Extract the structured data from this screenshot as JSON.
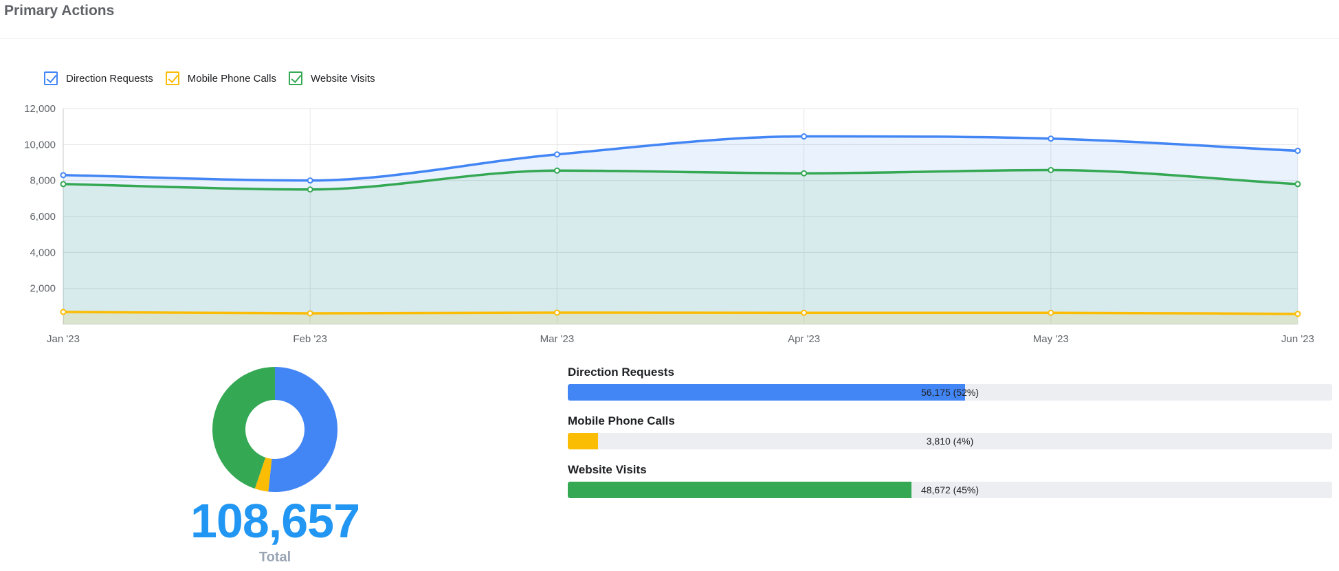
{
  "header": {
    "title": "Primary Actions"
  },
  "legend": [
    {
      "label": "Direction Requests",
      "color": "#4285f4"
    },
    {
      "label": "Mobile Phone Calls",
      "color": "#fbbc04"
    },
    {
      "label": "Website Visits",
      "color": "#34a853"
    }
  ],
  "chart_data": [
    {
      "type": "area",
      "categories": [
        "Jan '23",
        "Feb '23",
        "Mar '23",
        "Apr '23",
        "May '23",
        "Jun '23"
      ],
      "series": [
        {
          "name": "Direction Requests",
          "color": "#4285f4",
          "values": [
            8300,
            8000,
            9450,
            10450,
            10330,
            9650
          ]
        },
        {
          "name": "Website Visits",
          "color": "#34a853",
          "values": [
            7800,
            7500,
            8550,
            8400,
            8580,
            7800
          ]
        },
        {
          "name": "Mobile Phone Calls",
          "color": "#fbbc04",
          "values": [
            690,
            610,
            650,
            640,
            640,
            580
          ]
        }
      ],
      "ylim": [
        0,
        12000
      ],
      "yticks": [
        {
          "value": 2000,
          "label": "2,000"
        },
        {
          "value": 4000,
          "label": "4,000"
        },
        {
          "value": 6000,
          "label": "6,000"
        },
        {
          "value": 8000,
          "label": "8,000"
        },
        {
          "value": 10000,
          "label": "10,000"
        },
        {
          "value": 12000,
          "label": "12,000"
        }
      ],
      "grid": true
    },
    {
      "type": "pie",
      "variant": "donut",
      "slices": [
        {
          "name": "Direction Requests",
          "value": 56175,
          "color": "#4285f4"
        },
        {
          "name": "Mobile Phone Calls",
          "value": 3810,
          "color": "#fbbc04"
        },
        {
          "name": "Website Visits",
          "value": 48672,
          "color": "#34a853"
        }
      ]
    }
  ],
  "total": {
    "value": "108,657",
    "label": "Total"
  },
  "bars": [
    {
      "title": "Direction Requests",
      "text": "56,175 (52%)",
      "fraction": 0.52,
      "color": "#4285f4"
    },
    {
      "title": "Mobile Phone Calls",
      "text": "3,810 (4%)",
      "fraction": 0.04,
      "color": "#fbbc04"
    },
    {
      "title": "Website Visits",
      "text": "48,672 (45%)",
      "fraction": 0.45,
      "color": "#34a853"
    }
  ]
}
